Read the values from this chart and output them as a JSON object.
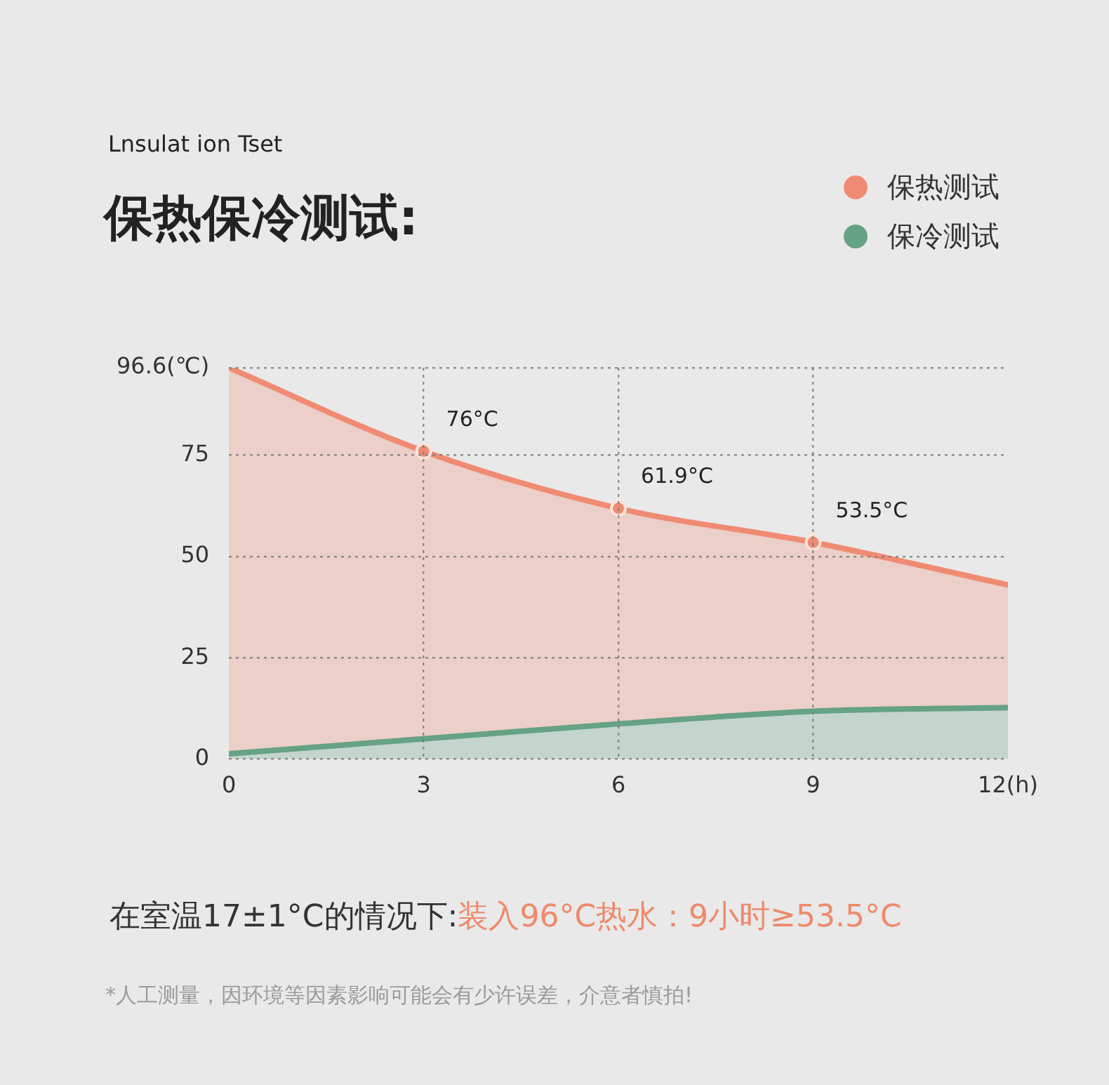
{
  "chart_data": {
    "type": "area",
    "subtitle": "Lnsulat ion Tset",
    "title": "保热保冷测试:",
    "x": [
      0,
      3,
      6,
      9,
      12
    ],
    "series": [
      {
        "name": "保热测试",
        "color": "#f08b73",
        "values": [
          96.6,
          76,
          61.9,
          53.5,
          43
        ],
        "value_labels": [
          null,
          "76°C",
          "61.9°C",
          "53.5°C",
          null
        ],
        "marker": "circle"
      },
      {
        "name": "保冷测试",
        "color": "#66a285",
        "values": [
          1.3,
          5,
          8.7,
          11.8,
          12.7
        ]
      }
    ],
    "xlim": [
      0,
      12
    ],
    "xticks": [
      0,
      3,
      6,
      9,
      {
        "value": 12,
        "label": "12(h)"
      }
    ],
    "ylim": [
      0,
      96.6
    ],
    "yticks": [
      0,
      25,
      50,
      75,
      {
        "value": 96.6,
        "label": "96.6(℃)"
      }
    ],
    "grid": true,
    "legend": "top right",
    "annotations": [
      "在室温17±1°C的情况下:",
      "装入96°C热水：9小时≥53.5°C",
      "*人工测量，因环境等因素影响可能会有少许误差，介意者慎拍!"
    ]
  }
}
